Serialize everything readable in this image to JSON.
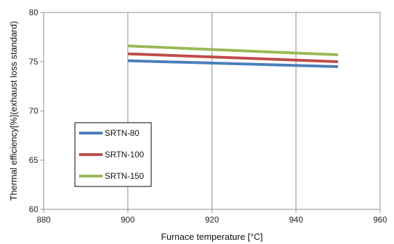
{
  "chart_data": {
    "type": "line",
    "title": "",
    "xlabel": "Furnace temperature [°C]",
    "ylabel": "Thermal efficiency[%](exhaust loss standard)",
    "xlim": [
      880,
      960
    ],
    "ylim": [
      60,
      80
    ],
    "xticks": [
      880,
      900,
      920,
      940,
      960
    ],
    "yticks": [
      60,
      65,
      70,
      75,
      80
    ],
    "xtick_labels": [
      "880",
      "900",
      "920",
      "940",
      "960"
    ],
    "ytick_labels": [
      "60",
      "65",
      "70",
      "75",
      "80"
    ],
    "grid": "vertical",
    "legend_position": "lower-left",
    "series": [
      {
        "name": "SRTN-80",
        "color": "#4a7ebb",
        "x": [
          900,
          950
        ],
        "y": [
          75.1,
          74.5
        ]
      },
      {
        "name": "SRTN-100",
        "color": "#be4b48",
        "x": [
          900,
          950
        ],
        "y": [
          75.8,
          75.0
        ]
      },
      {
        "name": "SRTN-150",
        "color": "#98b954",
        "x": [
          900,
          950
        ],
        "y": [
          76.6,
          75.7
        ]
      }
    ]
  }
}
